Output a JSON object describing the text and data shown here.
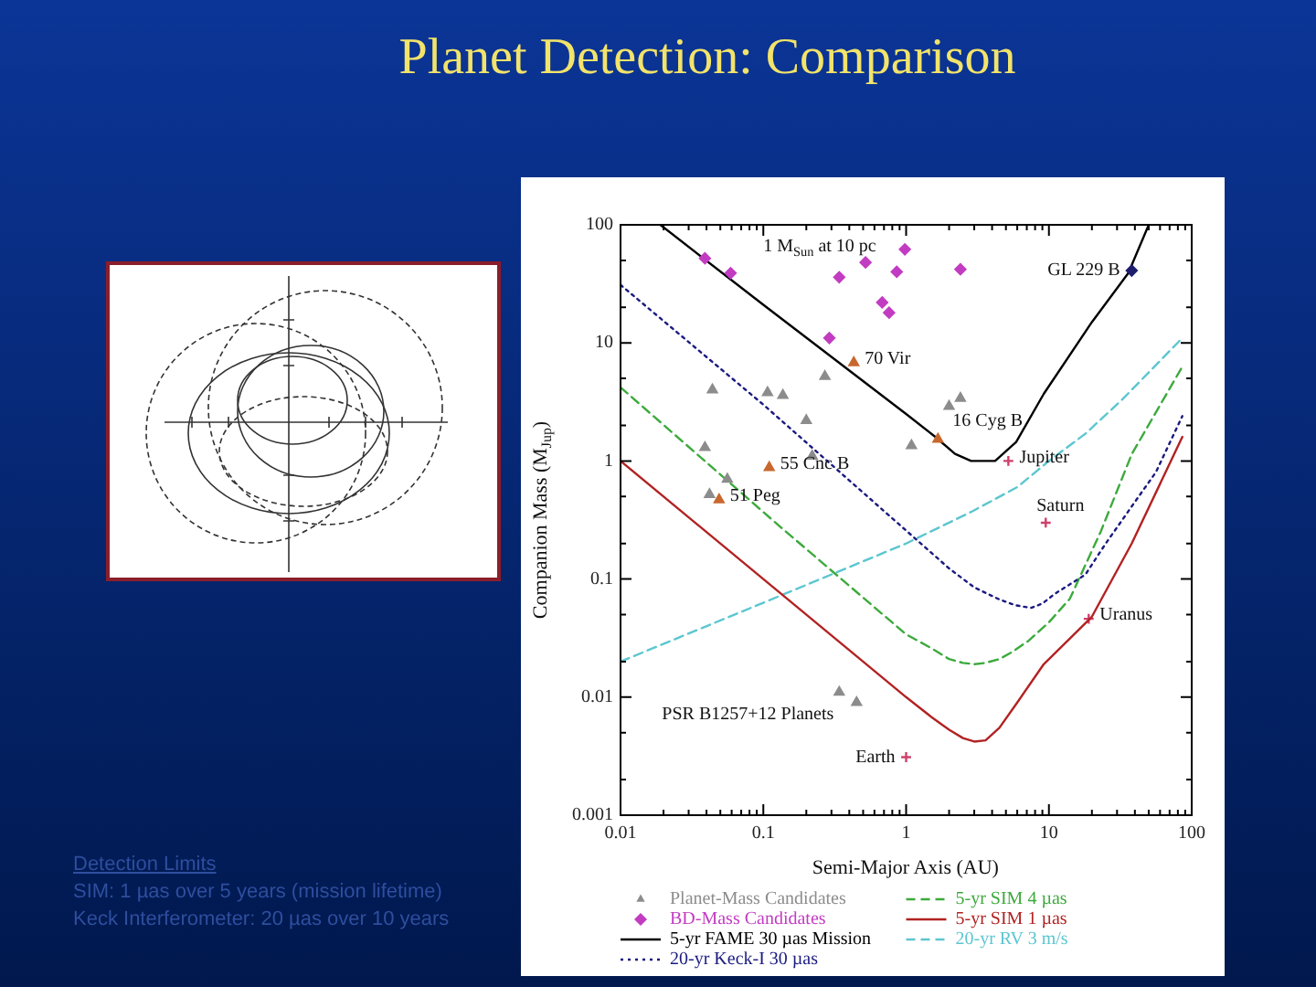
{
  "chart_data": {
    "type": "line",
    "title": "Planet Detection: Comparison",
    "xlabel": "Semi-Major Axis (AU)",
    "ylabel": "Companion Mass (M$_{Jup}$)",
    "log": "xy",
    "grid": false,
    "legend": "bottom",
    "xlim": [
      0.01,
      100
    ],
    "ylim": [
      0.001,
      100
    ],
    "xticks": [
      0.01,
      {
        "value": 0.02,
        "label": null
      },
      {
        "value": 0.03,
        "label": null
      },
      {
        "value": 0.04,
        "label": null
      },
      {
        "value": 0.05,
        "label": null
      },
      {
        "value": 0.06,
        "label": null
      },
      {
        "value": 0.07,
        "label": null
      },
      {
        "value": 0.08,
        "label": null
      },
      {
        "value": 0.09,
        "label": null
      },
      0.1,
      {
        "value": 0.2,
        "label": null
      },
      {
        "value": 0.3,
        "label": null
      },
      {
        "value": 0.4,
        "label": null
      },
      {
        "value": 0.5,
        "label": null
      },
      {
        "value": 0.6,
        "label": null
      },
      {
        "value": 0.7,
        "label": null
      },
      {
        "value": 0.8,
        "label": null
      },
      {
        "value": 0.9,
        "label": null
      },
      1,
      {
        "value": 2,
        "label": null
      },
      {
        "value": 3,
        "label": null
      },
      {
        "value": 4,
        "label": null
      },
      {
        "value": 5,
        "label": null
      },
      {
        "value": 6,
        "label": null
      },
      {
        "value": 7,
        "label": null
      },
      {
        "value": 8,
        "label": null
      },
      {
        "value": 9,
        "label": null
      },
      10,
      {
        "value": 20,
        "label": null
      },
      {
        "value": 30,
        "label": null
      },
      {
        "value": 40,
        "label": null
      },
      {
        "value": 50,
        "label": null
      },
      {
        "value": 60,
        "label": null
      },
      {
        "value": 70,
        "label": null
      },
      {
        "value": 80,
        "label": null
      },
      {
        "value": 90,
        "label": null
      },
      100
    ],
    "yticks": [
      0.001,
      {
        "value": 0.002,
        "label": null
      },
      {
        "value": 0.005,
        "label": null
      },
      0.01,
      {
        "value": 0.02,
        "label": null
      },
      {
        "value": 0.05,
        "label": null
      },
      0.1,
      {
        "value": 0.2,
        "label": null
      },
      {
        "value": 0.5,
        "label": null
      },
      1,
      {
        "value": 2,
        "label": null
      },
      {
        "value": 5,
        "label": null
      },
      10,
      {
        "value": 20,
        "label": null
      },
      {
        "value": 50,
        "label": null
      },
      100
    ],
    "series": [
      {
        "name": "Planet-Mass Candidates",
        "type": "scatter",
        "marker": "triangle",
        "color": "#8c8c8c",
        "x": [
          0.044,
          0.107,
          0.137,
          0.27,
          0.2,
          0.039,
          0.22,
          0.056,
          0.042,
          1.09,
          2.0,
          2.4,
          0.43,
          1.67,
          0.11,
          0.049,
          0.34,
          0.45
        ],
        "values": [
          4.0,
          3.8,
          3.6,
          5.2,
          2.2,
          1.3,
          1.1,
          0.7,
          0.52,
          1.35,
          2.9,
          3.4,
          6.8,
          1.53,
          0.88,
          0.47,
          0.011,
          0.009
        ],
        "colors": [
          "#8c8c8c",
          "#8c8c8c",
          "#8c8c8c",
          "#8c8c8c",
          "#8c8c8c",
          "#8c8c8c",
          "#8c8c8c",
          "#8c8c8c",
          "#8c8c8c",
          "#8c8c8c",
          "#8c8c8c",
          "#8c8c8c",
          "#c8682e",
          "#c8682e",
          "#c8682e",
          "#c8682e",
          "#8c8c8c",
          "#8c8c8c"
        ]
      },
      {
        "name": "BD-Mass Candidates",
        "type": "scatter",
        "marker": "diamond",
        "color": "#c23cc2",
        "x": [
          0.039,
          0.059,
          0.34,
          0.52,
          0.98,
          0.86,
          2.4,
          0.68,
          0.76,
          0.29,
          38
        ],
        "values": [
          52,
          39,
          36,
          48,
          62,
          40,
          42,
          22,
          18,
          11,
          41
        ],
        "colors": [
          "#c23cc2",
          "#c23cc2",
          "#c23cc2",
          "#c23cc2",
          "#c23cc2",
          "#c23cc2",
          "#c23cc2",
          "#c23cc2",
          "#c23cc2",
          "#c23cc2",
          "#1e1e6e"
        ]
      },
      {
        "name": "5-yr FAME 30 µas Mission",
        "line_style": "solid",
        "marker": "none",
        "color": "#000000",
        "x": [
          0.019,
          0.1,
          1,
          1.6,
          2.2,
          2.85,
          3.6,
          4.2,
          5.9,
          9.2,
          20,
          36,
          50
        ],
        "values": [
          100,
          21,
          2.5,
          1.6,
          1.15,
          1.0,
          1.0,
          1.0,
          1.45,
          3.7,
          15,
          39,
          100
        ]
      },
      {
        "name": "20-yr Keck-I 30 µas",
        "line_style": "dotted",
        "marker": "none",
        "color": "#1a1a80",
        "x": [
          0.01,
          0.1,
          0.84,
          2,
          3,
          4.4,
          5.8,
          7.5,
          9,
          11,
          18,
          25,
          40,
          56,
          86
        ],
        "values": [
          31,
          3.0,
          0.31,
          0.123,
          0.085,
          0.068,
          0.06,
          0.057,
          0.062,
          0.075,
          0.109,
          0.2,
          0.45,
          0.8,
          2.4
        ]
      },
      {
        "name": "5-yr SIM 4 µas",
        "line_style": "dashed",
        "marker": "none",
        "color": "#3daa3d",
        "x": [
          0.01,
          0.13,
          1,
          1.5,
          2,
          2.5,
          3,
          3.6,
          4.5,
          5.5,
          7.2,
          10,
          14,
          23,
          38,
          86
        ],
        "values": [
          4.2,
          0.28,
          0.034,
          0.026,
          0.021,
          0.0195,
          0.019,
          0.0195,
          0.021,
          0.024,
          0.03,
          0.043,
          0.068,
          0.25,
          1.14,
          6.3
        ]
      },
      {
        "name": "5-yr SIM 1 µas",
        "line_style": "solid",
        "marker": "none",
        "color": "#b22222",
        "x": [
          0.01,
          0.1,
          1,
          1.5,
          2,
          2.5,
          3,
          3.6,
          4.5,
          6,
          9.2,
          20,
          38,
          86
        ],
        "values": [
          1.0,
          0.1,
          0.01,
          0.0068,
          0.0053,
          0.0045,
          0.0042,
          0.0043,
          0.0055,
          0.009,
          0.019,
          0.048,
          0.2,
          1.6
        ]
      },
      {
        "name": "20-yr RV 3 m/s",
        "line_style": "dashed",
        "marker": "none",
        "color": "#5cc6d0",
        "x": [
          0.01,
          0.1,
          1,
          2.85,
          6,
          10,
          18,
          32.5,
          86
        ],
        "values": [
          0.02,
          0.063,
          0.2,
          0.37,
          0.6,
          1.0,
          1.7,
          3.3,
          11
        ]
      },
      {
        "type": "scatter",
        "marker": "cross",
        "color": "#d0406a",
        "x": [
          1,
          5.2,
          9.5,
          19
        ],
        "values": [
          0.0031,
          1.0,
          0.3,
          0.046
        ]
      }
    ],
    "annotations": [
      "1 M$_{Sun}$ at 10 pc",
      {
        "text": "GL 229 B",
        "x": 38,
        "y": 41
      },
      {
        "text": "70 Vir",
        "x": 0.43,
        "y": 6.8
      },
      {
        "text": "16 Cyg B",
        "x": 1.67,
        "y": 1.53
      },
      {
        "text": "Jupiter",
        "x": 5.2,
        "y": 1.0
      },
      {
        "text": "55 Cnc B",
        "x": 0.11,
        "y": 0.88
      },
      {
        "text": "51 Peg",
        "x": 0.049,
        "y": 0.47
      },
      {
        "text": "Saturn",
        "x": 9.5,
        "y": 0.3
      },
      {
        "text": "Uranus",
        "x": 19,
        "y": 0.046
      },
      {
        "text": "Earth",
        "x": 1,
        "y": 0.0031
      },
      {
        "text": "PSR B1257+12 Planets",
        "x": 0.34,
        "y": 0.011
      },
      "Detection Limits",
      "SIM: 1 µas over 5 years (mission lifetime)",
      "Keck Interferometer: 20 µas over 10 years"
    ]
  }
}
